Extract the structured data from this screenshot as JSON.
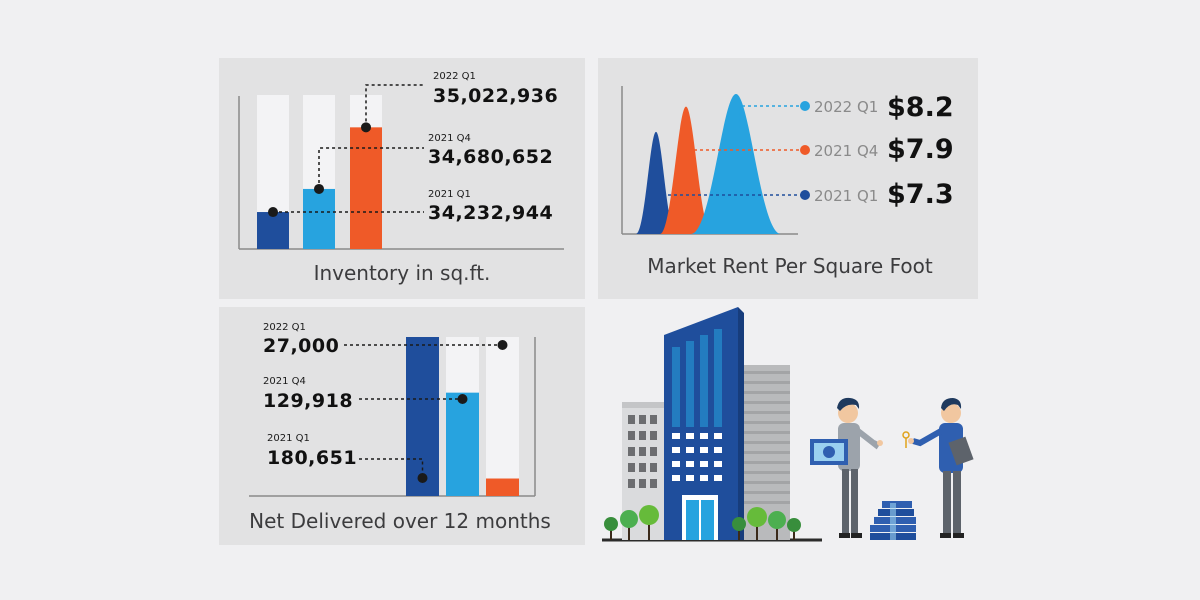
{
  "colors": {
    "q1_2021": "#1f4e9c",
    "q4_2021": "#ef5a28",
    "q1_2022": "#27a3df",
    "track": "#f3f3f5",
    "panel": "#e2e2e3"
  },
  "chart_data": [
    {
      "type": "bar",
      "title": "Inventory in sq.ft.",
      "series": [
        {
          "period": "2021 Q1",
          "value_label": "34,232,944",
          "value": 34232944,
          "fraction": 0.24
        },
        {
          "period": "2021 Q4",
          "value_label": "34,680,652",
          "value": 34680652,
          "fraction": 0.39
        },
        {
          "period": "2022 Q1",
          "value_label": "35,022,936",
          "value": 35022936,
          "fraction": 0.79
        }
      ]
    },
    {
      "type": "area",
      "title": "Market Rent Per Square Foot",
      "series": [
        {
          "period": "2022 Q1",
          "value_label": "$8.2",
          "value": 8.2
        },
        {
          "period": "2021 Q4",
          "value_label": "$7.9",
          "value": 7.9
        },
        {
          "period": "2021 Q1",
          "value_label": "$7.3",
          "value": 7.3
        }
      ]
    },
    {
      "type": "bar",
      "title": "Net Delivered over 12 months",
      "series": [
        {
          "period": "2022 Q1",
          "value_label": "27,000",
          "value": 27000,
          "fraction": 0.11
        },
        {
          "period": "2021 Q4",
          "value_label": "129,918",
          "value": 129918,
          "fraction": 0.65
        },
        {
          "period": "2021 Q1",
          "value_label": "180,651",
          "value": 180651,
          "fraction": 1.0
        }
      ]
    }
  ]
}
